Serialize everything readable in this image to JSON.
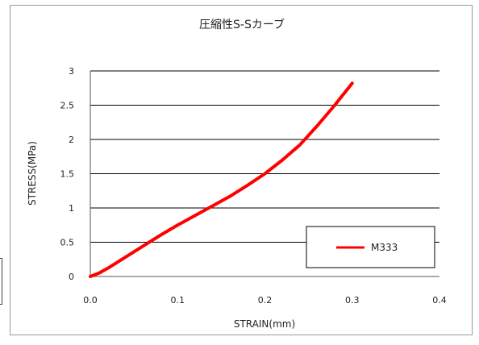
{
  "chart_data": {
    "type": "line",
    "title": "圧縮性S-Sカーブ",
    "xlabel": "STRAIN(mm)",
    "ylabel": "STRESS(MPa)",
    "xlim": [
      0,
      0.4
    ],
    "ylim": [
      0,
      3
    ],
    "x_ticks": [
      "0.0",
      "0.1",
      "0.2",
      "0.3",
      "0.4"
    ],
    "y_ticks": [
      "0",
      "0.5",
      "1",
      "1.5",
      "2",
      "2.5",
      "3"
    ],
    "grid": "horizontal",
    "legend_position": "bottom-right",
    "colors": {
      "series": "#ff0000",
      "grid": "#000000",
      "axis": "#555555"
    },
    "series": [
      {
        "name": "M333",
        "x": [
          0.0,
          0.01,
          0.02,
          0.04,
          0.06,
          0.08,
          0.1,
          0.12,
          0.14,
          0.16,
          0.18,
          0.2,
          0.22,
          0.24,
          0.26,
          0.28,
          0.3
        ],
        "y": [
          0.0,
          0.05,
          0.12,
          0.28,
          0.44,
          0.6,
          0.75,
          0.89,
          1.03,
          1.17,
          1.33,
          1.5,
          1.7,
          1.92,
          2.2,
          2.5,
          2.82
        ]
      }
    ]
  }
}
